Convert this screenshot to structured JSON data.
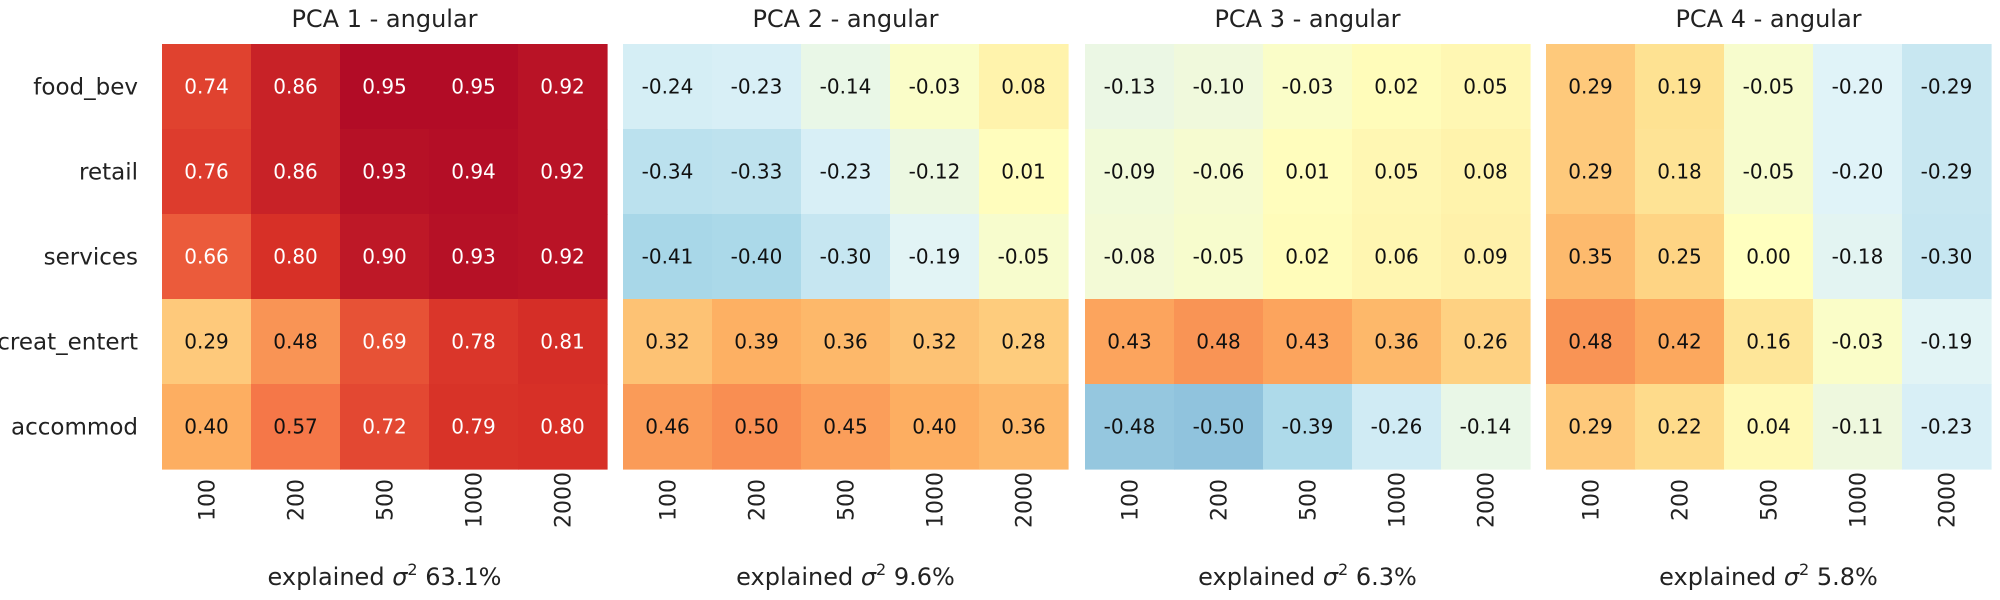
{
  "chart_data": {
    "type": "heatmap",
    "rows": [
      "food_bev",
      "retail",
      "services",
      "creat_entert",
      "accommod"
    ],
    "columns": [
      "100",
      "200",
      "500",
      "1000",
      "2000"
    ],
    "colormap": "RdYlBu_r",
    "value_range": [
      -1,
      1
    ],
    "panels": [
      {
        "title": "PCA 1 - angular",
        "xlabel_prefix": "explained",
        "xlabel_symbol": "σ",
        "xlabel_exponent": "2",
        "xlabel_value": "63.1%",
        "values": [
          [
            0.74,
            0.86,
            0.95,
            0.95,
            0.92
          ],
          [
            0.76,
            0.86,
            0.93,
            0.94,
            0.92
          ],
          [
            0.66,
            0.8,
            0.9,
            0.93,
            0.92
          ],
          [
            0.29,
            0.48,
            0.69,
            0.78,
            0.81
          ],
          [
            0.4,
            0.57,
            0.72,
            0.79,
            0.8
          ]
        ]
      },
      {
        "title": "PCA 2 - angular",
        "xlabel_prefix": "explained",
        "xlabel_symbol": "σ",
        "xlabel_exponent": "2",
        "xlabel_value": "9.6%",
        "values": [
          [
            -0.24,
            -0.23,
            -0.14,
            -0.03,
            0.08
          ],
          [
            -0.34,
            -0.33,
            -0.23,
            -0.12,
            0.01
          ],
          [
            -0.41,
            -0.4,
            -0.3,
            -0.19,
            -0.05
          ],
          [
            0.32,
            0.39,
            0.36,
            0.32,
            0.28
          ],
          [
            0.46,
            0.5,
            0.45,
            0.4,
            0.36
          ]
        ]
      },
      {
        "title": "PCA 3 - angular",
        "xlabel_prefix": "explained",
        "xlabel_symbol": "σ",
        "xlabel_exponent": "2",
        "xlabel_value": "6.3%",
        "values": [
          [
            -0.13,
            -0.1,
            -0.03,
            0.02,
            0.05
          ],
          [
            -0.09,
            -0.06,
            0.01,
            0.05,
            0.08
          ],
          [
            -0.08,
            -0.05,
            0.02,
            0.06,
            0.09
          ],
          [
            0.43,
            0.48,
            0.43,
            0.36,
            0.26
          ],
          [
            -0.48,
            -0.5,
            -0.39,
            -0.26,
            -0.14
          ]
        ]
      },
      {
        "title": "PCA 4 - angular",
        "xlabel_prefix": "explained",
        "xlabel_symbol": "σ",
        "xlabel_exponent": "2",
        "xlabel_value": "5.8%",
        "values": [
          [
            0.29,
            0.19,
            -0.05,
            -0.2,
            -0.29
          ],
          [
            0.29,
            0.18,
            -0.05,
            -0.2,
            -0.29
          ],
          [
            0.35,
            0.25,
            0.0,
            -0.18,
            -0.3
          ],
          [
            0.48,
            0.42,
            0.16,
            -0.03,
            -0.19
          ],
          [
            0.29,
            0.22,
            0.04,
            -0.11,
            -0.23
          ]
        ]
      }
    ]
  }
}
